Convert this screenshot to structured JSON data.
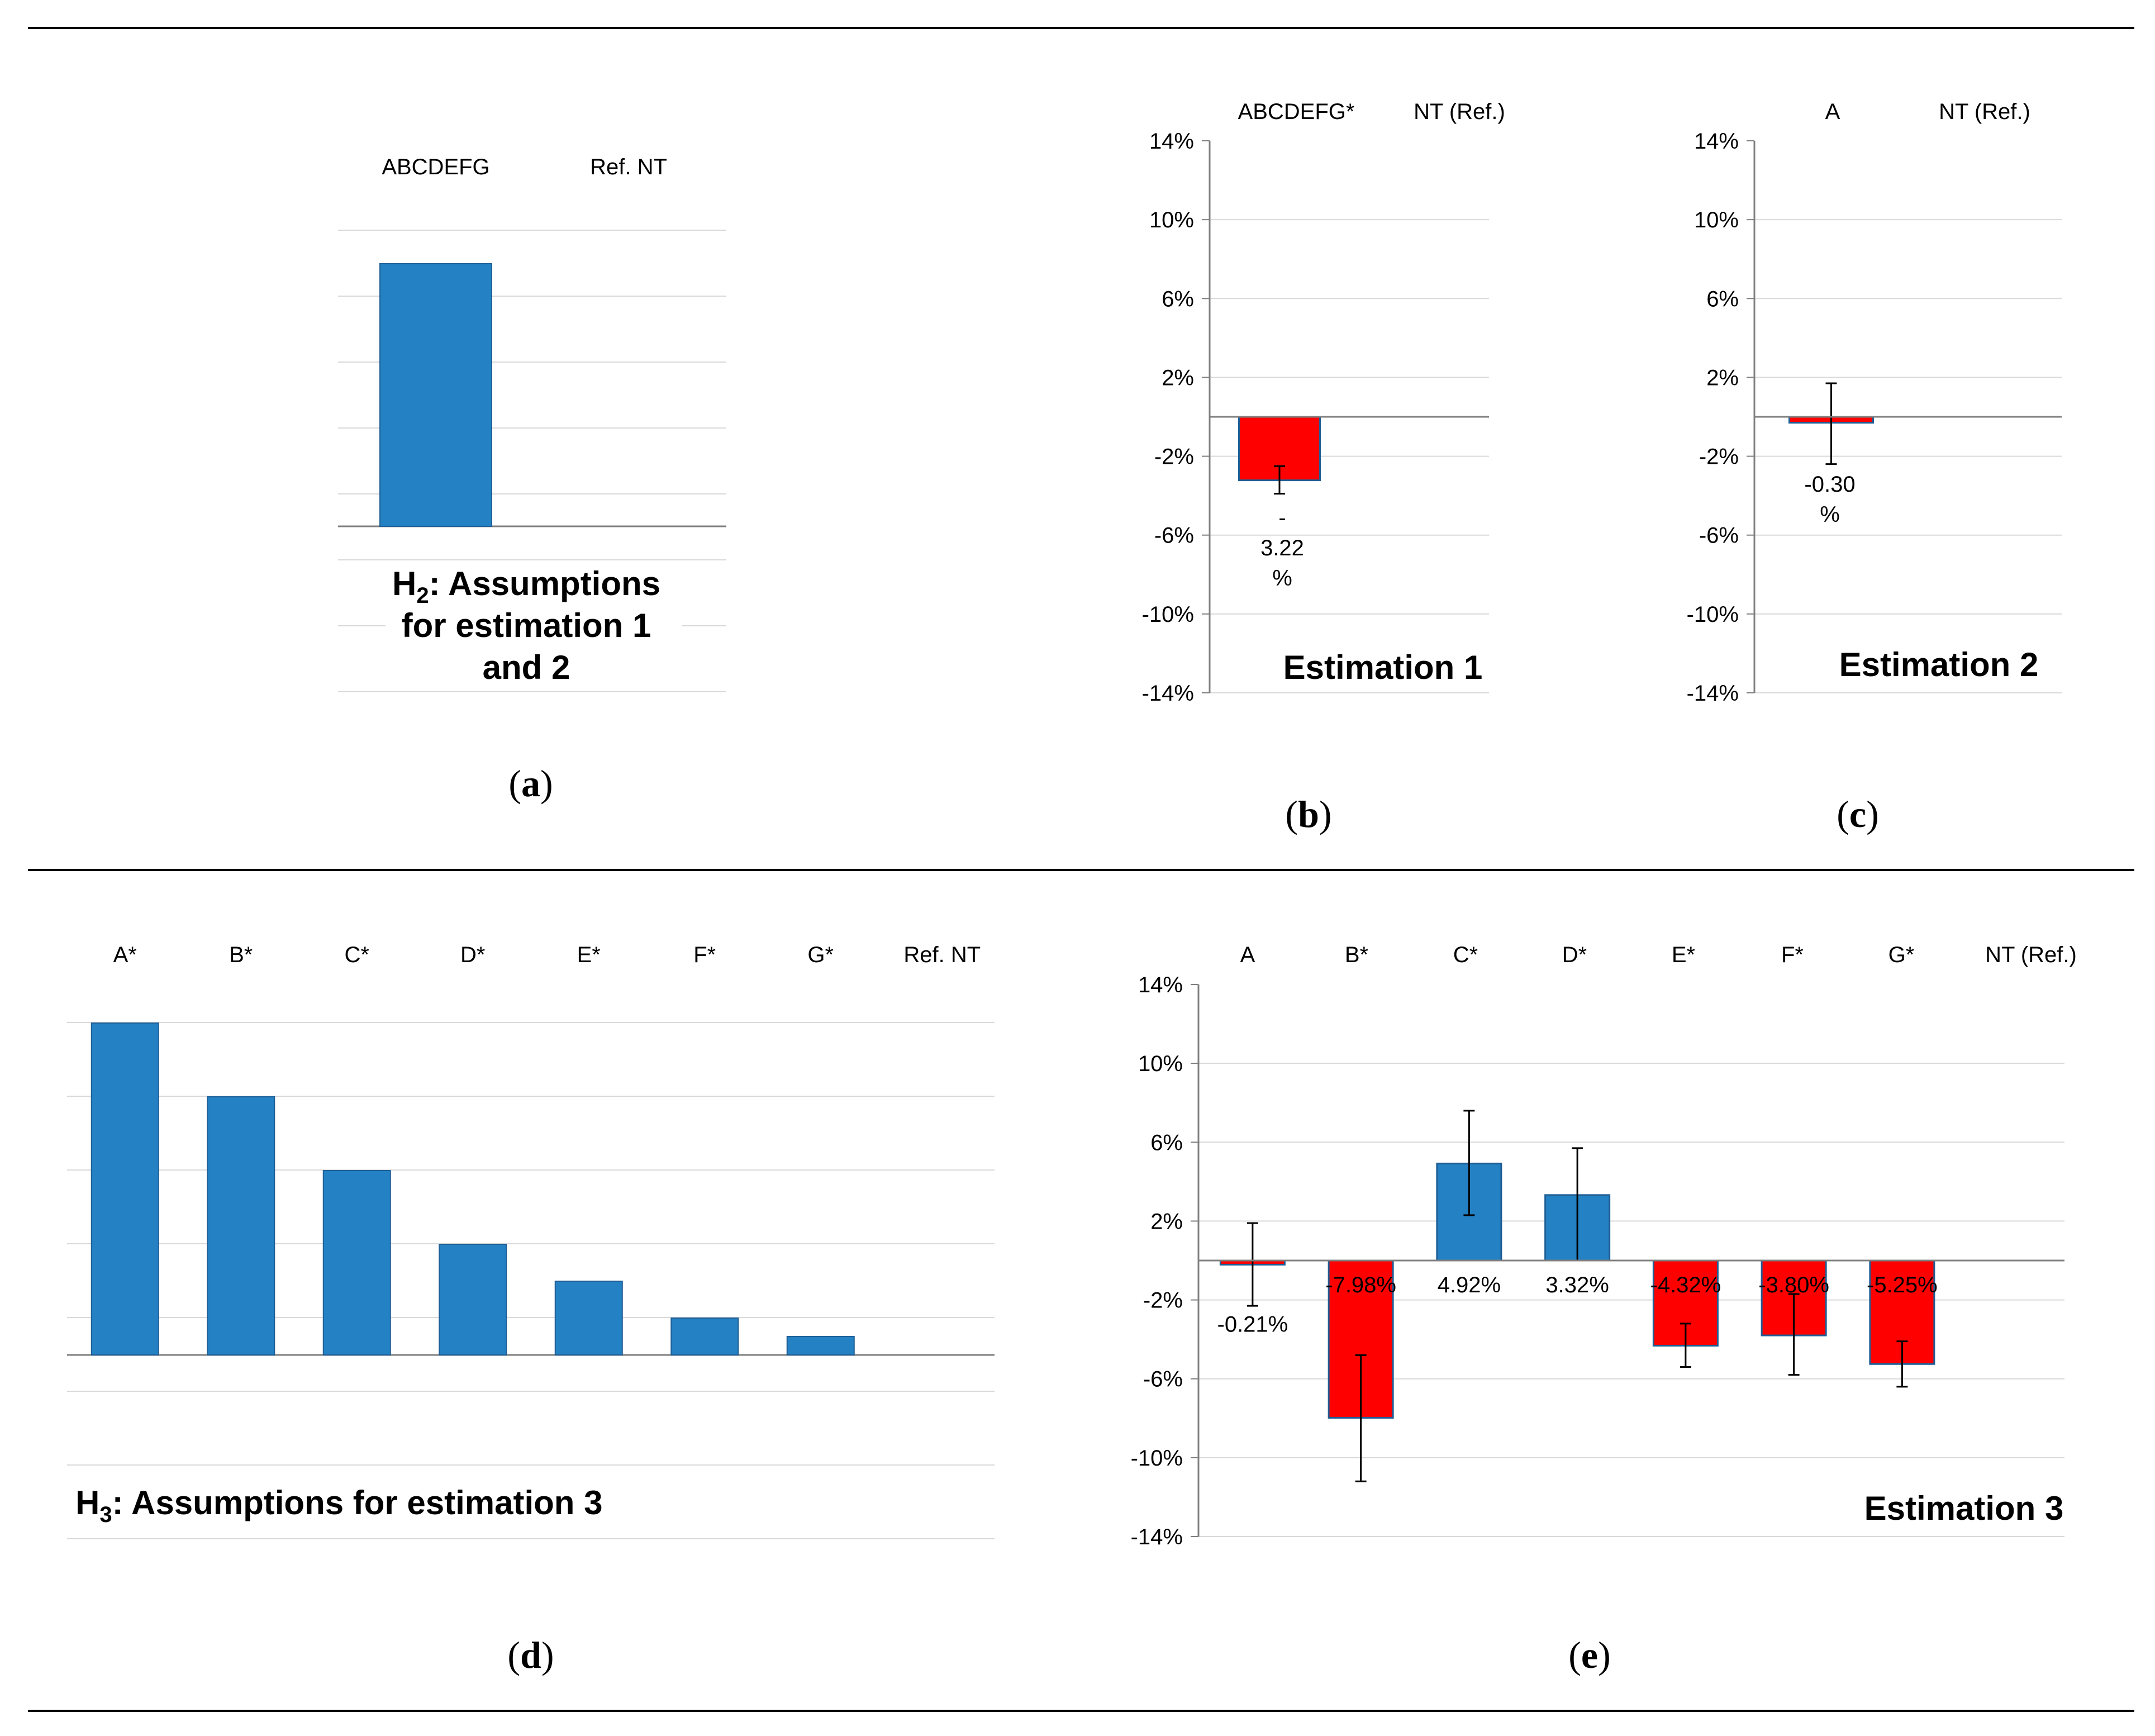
{
  "panels": {
    "a": {
      "caption": "a",
      "title_main": "H",
      "title_sub": "2",
      "title_lines": [
        ": Assumptions",
        "for estimation 1",
        "and 2"
      ],
      "col_labels": [
        "ABCDEFG",
        "Ref. NT"
      ]
    },
    "b": {
      "caption": "b",
      "title": "Estimation 1",
      "col_labels": [
        "ABCDEFG*",
        "NT (Ref.)"
      ],
      "bar_label_lines": [
        "-",
        "3.22",
        "%"
      ]
    },
    "c": {
      "caption": "c",
      "title": "Estimation 2",
      "col_labels": [
        "A",
        "NT (Ref.)"
      ],
      "bar_label_lines": [
        "-0.30",
        "%"
      ]
    },
    "d": {
      "caption": "d",
      "title_main": "H",
      "title_sub": "3",
      "title_rest": ": Assumptions for estimation 3",
      "col_labels": [
        "A*",
        "B*",
        "C*",
        "D*",
        "E*",
        "F*",
        "G*",
        "Ref. NT"
      ]
    },
    "e": {
      "caption": "e",
      "title": "Estimation 3",
      "col_labels": [
        "A",
        "B*",
        "C*",
        "D*",
        "E*",
        "F*",
        "G*",
        "NT  (Ref.)"
      ]
    }
  },
  "colors": {
    "positive": "#2481C3",
    "negative": "#FF0000",
    "grid": "#D9D9D9",
    "axis": "#7F7F7F",
    "rule": "#000000",
    "text": "#000000"
  },
  "chart_data": [
    {
      "panel": "a",
      "type": "bar",
      "categories": [
        "ABCDEFG",
        "Ref. NT"
      ],
      "values": [
        1,
        0
      ],
      "value_axis_labels": "none"
    },
    {
      "panel": "b",
      "type": "bar",
      "title": "Estimation 1",
      "categories": [
        "ABCDEFG*",
        "NT (Ref.)"
      ],
      "values": [
        -3.22,
        null
      ],
      "error_low": [
        -3.9
      ],
      "error_high": [
        -2.5
      ],
      "ylim": [
        -14,
        14
      ],
      "yticks": [
        "14%",
        "10%",
        "6%",
        "2%",
        "-2%",
        "-6%",
        "-10%",
        "-14%"
      ],
      "grid": true
    },
    {
      "panel": "c",
      "type": "bar",
      "title": "Estimation 2",
      "categories": [
        "A",
        "NT (Ref.)"
      ],
      "values": [
        -0.3,
        null
      ],
      "error_low": [
        -2.4
      ],
      "error_high": [
        1.7
      ],
      "ylim": [
        -14,
        14
      ],
      "yticks": [
        "14%",
        "10%",
        "6%",
        "2%",
        "-2%",
        "-6%",
        "-10%",
        "-14%"
      ],
      "grid": true
    },
    {
      "panel": "d",
      "type": "bar",
      "categories": [
        "A*",
        "B*",
        "C*",
        "D*",
        "E*",
        "F*",
        "G*",
        "Ref. NT"
      ],
      "values": [
        9,
        7,
        5,
        3,
        2,
        1,
        0.5,
        0
      ],
      "value_axis_labels": "none"
    },
    {
      "panel": "e",
      "type": "bar",
      "title": "Estimation 3",
      "categories": [
        "A",
        "B*",
        "C*",
        "D*",
        "E*",
        "F*",
        "G*",
        "NT  (Ref.)"
      ],
      "values": [
        -0.21,
        -7.98,
        4.92,
        3.32,
        -4.32,
        -3.8,
        -5.25,
        null
      ],
      "data_labels": [
        "-0.21%",
        "-7.98%",
        "4.92%",
        "3.32%",
        "-4.32%",
        "-3.80%",
        "-5.25%",
        ""
      ],
      "error_low": [
        -2.3,
        -11.2,
        2.3,
        0.0,
        -5.4,
        -5.8,
        -6.4,
        null
      ],
      "error_high": [
        1.9,
        -4.8,
        7.6,
        5.7,
        -3.2,
        -1.7,
        -4.1,
        null
      ],
      "ylim": [
        -14,
        14
      ],
      "yticks": [
        "14%",
        "10%",
        "6%",
        "2%",
        "-2%",
        "-6%",
        "-10%",
        "-14%"
      ],
      "grid": true
    }
  ]
}
